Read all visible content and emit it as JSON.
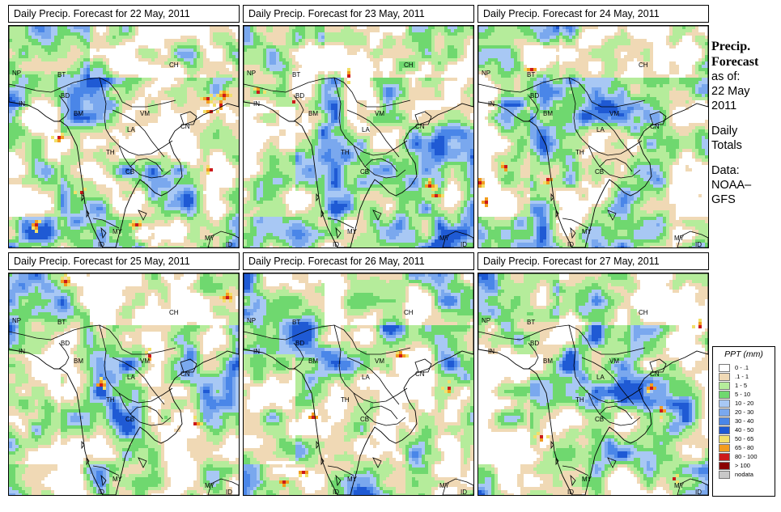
{
  "panels": [
    {
      "title": "Daily Precip. Forecast for  22 May, 2011",
      "date": "22 May"
    },
    {
      "title": "Daily Precip. Forecast for  23 May, 2011",
      "date": "23 May"
    },
    {
      "title": "Daily Precip. Forecast for  24 May, 2011",
      "date": "24 May"
    },
    {
      "title": "Daily Precip. Forecast for  25 May, 2011",
      "date": "25 May"
    },
    {
      "title": "Daily Precip. Forecast for  26 May, 2011",
      "date": "26 May"
    },
    {
      "title": "Daily Precip. Forecast for  27 May, 2011",
      "date": "27 May"
    }
  ],
  "country_labels": {
    "NP": "NP",
    "BT": "BT",
    "IN": "IN",
    "BD": "BD",
    "BM": "BM",
    "CH": "CH",
    "VM": "VM",
    "LA": "LA",
    "TH": "TH",
    "CB": "CB",
    "CN": "CN",
    "MY": "MY",
    "MY2": "MY",
    "ID": "ID",
    "ID2": "ID"
  },
  "sidebar": {
    "heading1": "Precip.",
    "heading2": "Forecast",
    "asof": "as of:",
    "date1": "22 May",
    "date2": "2011",
    "daily1": "Daily",
    "daily2": "Totals",
    "data1": "Data:",
    "data2": "NOAA–",
    "data3": "GFS"
  },
  "legend": {
    "title": "PPT (mm)",
    "items": [
      {
        "label": "0 - .1",
        "color": "#ffffff"
      },
      {
        "label": ".1 - 1",
        "color": "#f0d9b5"
      },
      {
        "label": "1 - 5",
        "color": "#b5ec9b"
      },
      {
        "label": "5 - 10",
        "color": "#6fd86f"
      },
      {
        "label": "10 - 20",
        "color": "#a8c8f4"
      },
      {
        "label": "20 - 30",
        "color": "#7aa8ee"
      },
      {
        "label": "30 - 40",
        "color": "#4a86e8"
      },
      {
        "label": "40 - 50",
        "color": "#1f5ad4"
      },
      {
        "label": "50 - 65",
        "color": "#f2e06a"
      },
      {
        "label": "65 - 80",
        "color": "#f39c1e"
      },
      {
        "label": "80 - 100",
        "color": "#cc1a1a"
      },
      {
        "label": "> 100",
        "color": "#8a0000"
      },
      {
        "label": "nodata",
        "color": "#c8c8c8"
      }
    ]
  }
}
